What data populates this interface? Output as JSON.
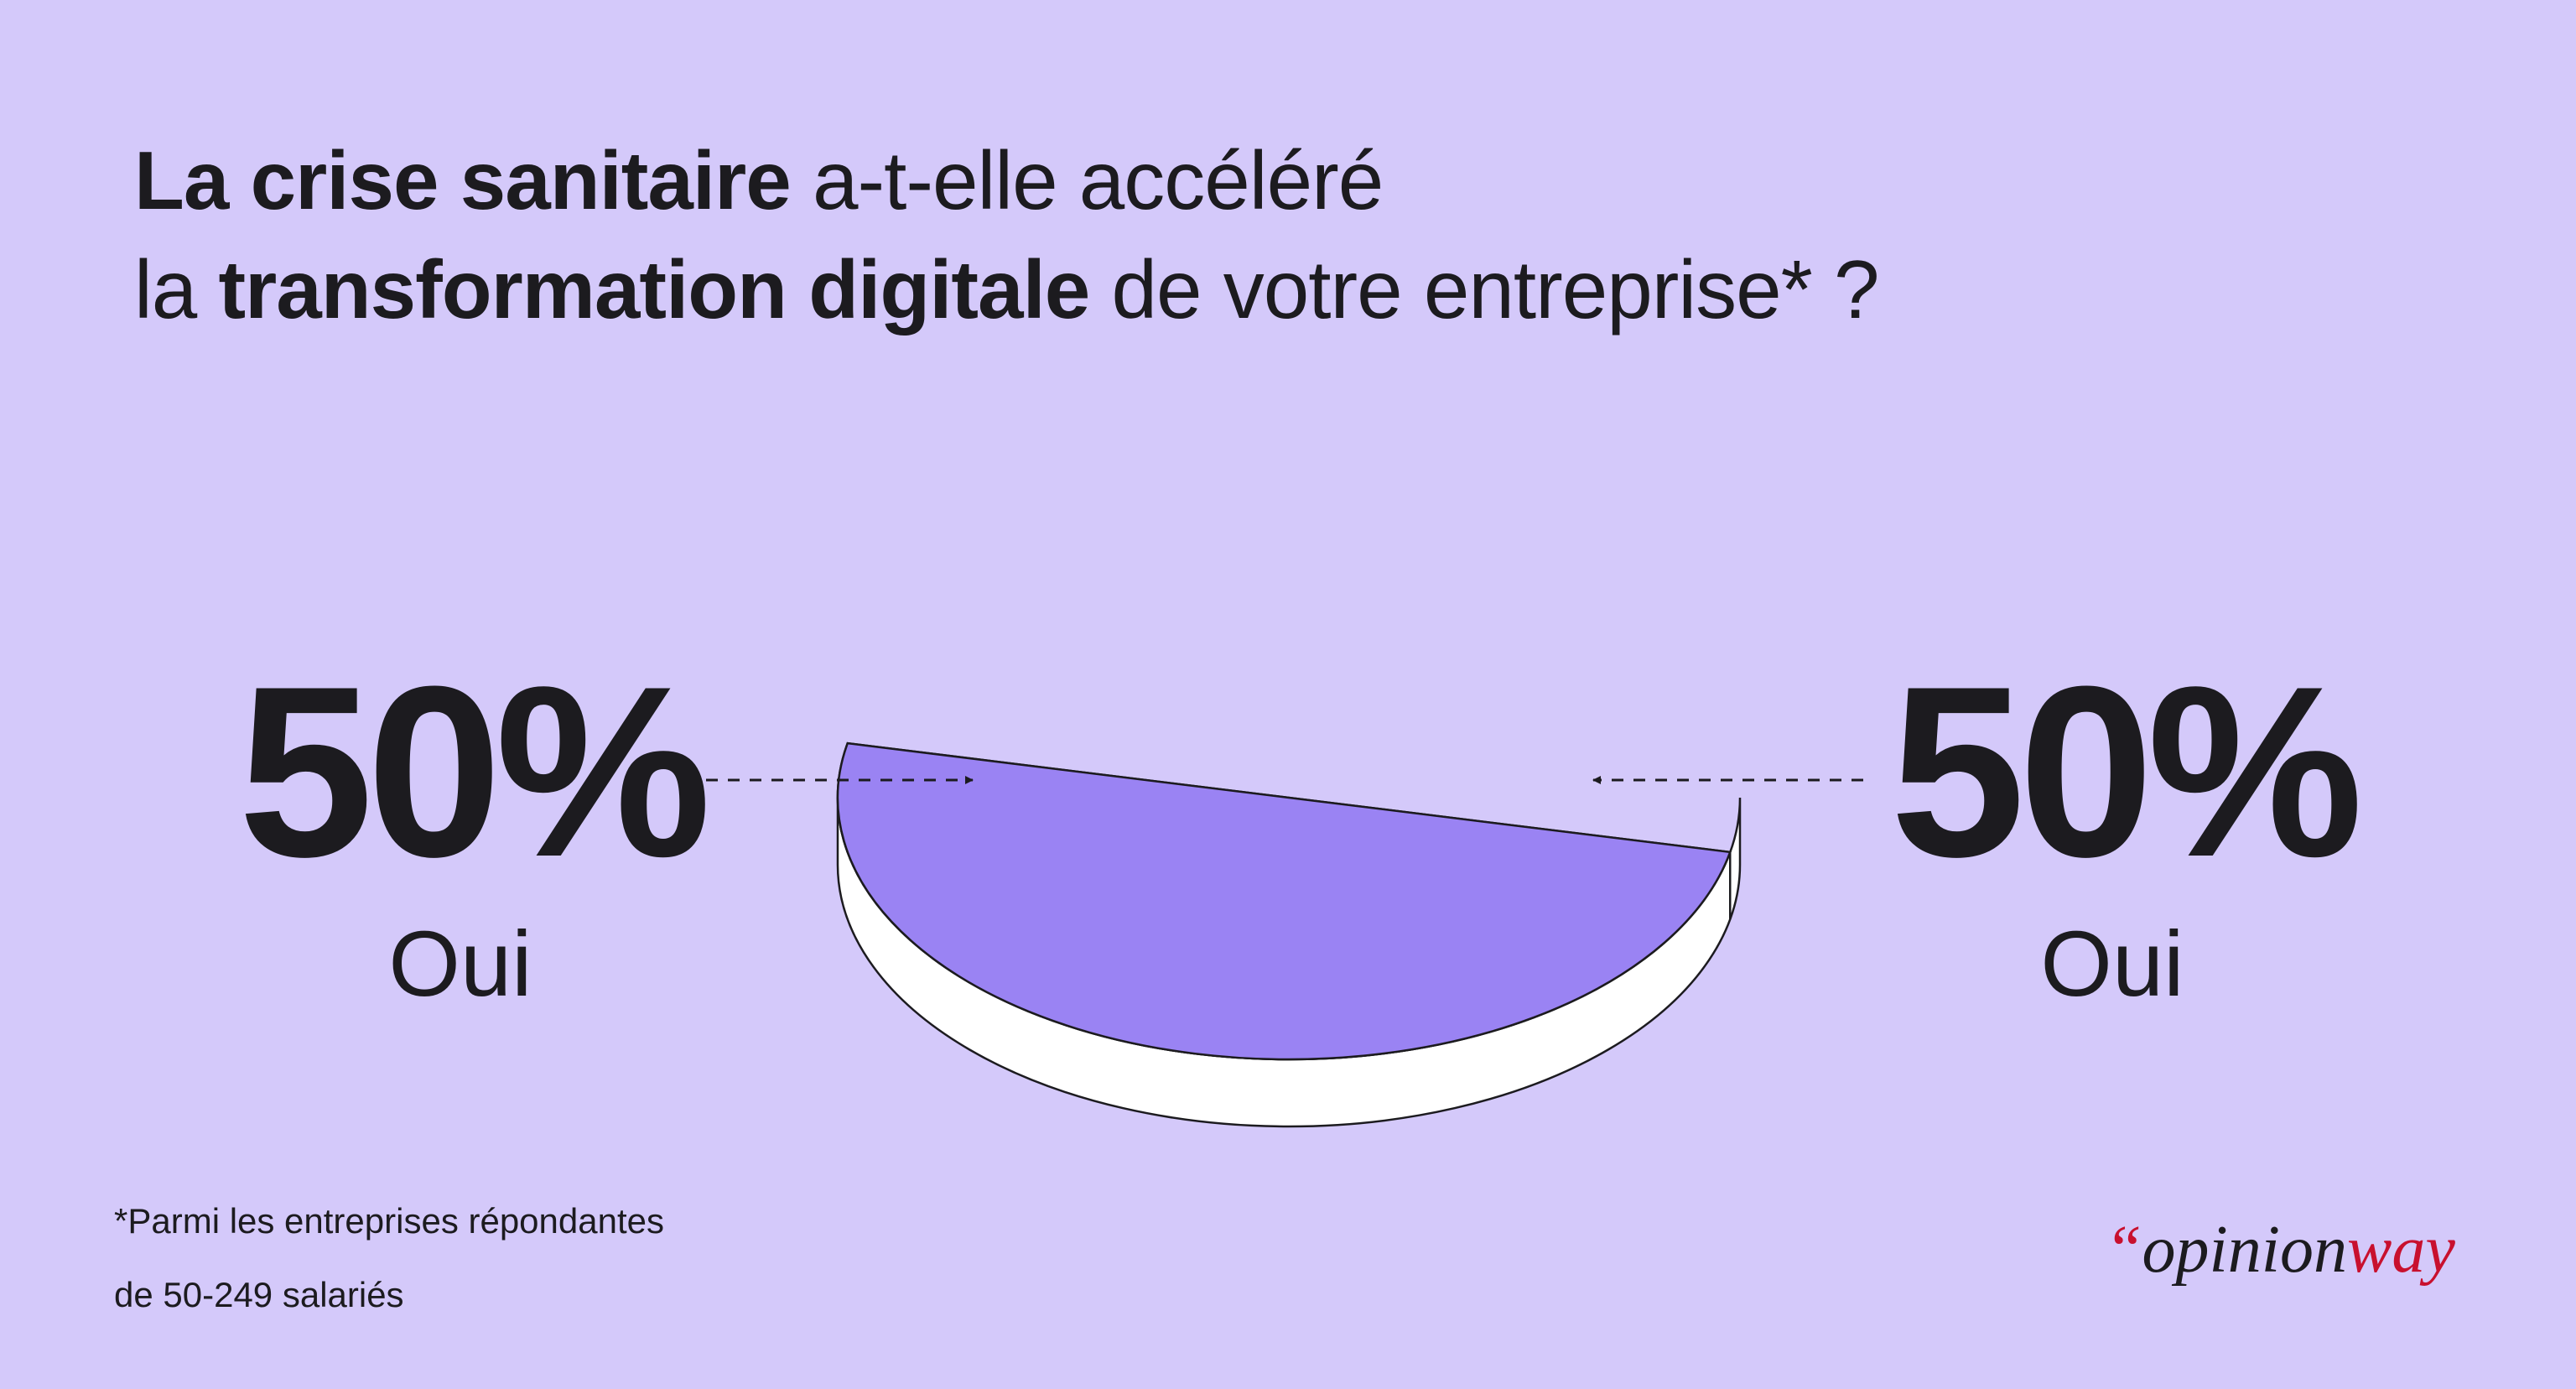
{
  "title": {
    "line1_bold": "La crise sanitaire",
    "line1_rest": " a-t-elle accéléré",
    "line2_start": "la ",
    "line2_bold": "transformation digitale",
    "line2_rest": " de votre entreprise* ?"
  },
  "footnote": {
    "line1": "*Parmi les entreprises répondantes",
    "line2": "de 50-249 salariés"
  },
  "logo": {
    "quote": "“",
    "opinion": "opinion",
    "way": "way"
  },
  "chart_data": {
    "type": "pie",
    "style": "3d",
    "slices": [
      {
        "label": "Oui",
        "value": 50,
        "display": "50%",
        "color": "#ede8fc",
        "callout": "left"
      },
      {
        "label": "Oui",
        "value": 50,
        "display": "50%",
        "color": "#9a83f3",
        "callout": "right"
      }
    ]
  },
  "colors": {
    "background": "#d4c9fa",
    "slice_light": "#ede8fc",
    "slice_purple": "#9a83f3",
    "side": "#ffffff",
    "text": "#1c1b1f",
    "logo_accent": "#c8102e"
  }
}
